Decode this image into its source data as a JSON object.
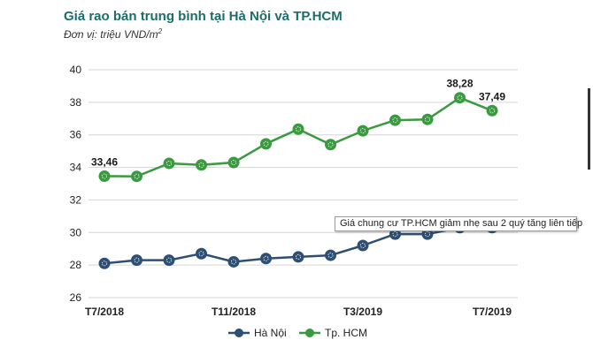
{
  "chart_data": {
    "type": "line",
    "title": "Giá rao bán trung bình tại Hà Nội và TP.HCM",
    "subtitle_prefix": "Đơn vị: triệu VND/m",
    "subtitle_sup": "2",
    "ylim": [
      26,
      40
    ],
    "yticks": [
      26,
      28,
      30,
      32,
      34,
      36,
      38,
      40
    ],
    "x_tick_labels": [
      {
        "index": 0,
        "label": "T7/2018"
      },
      {
        "index": 4,
        "label": "T11/2018"
      },
      {
        "index": 8,
        "label": "T3/2019"
      },
      {
        "index": 12,
        "label": "T7/2019"
      }
    ],
    "grid": "horizontal",
    "legend_position": "bottom",
    "series": [
      {
        "name": "Hà Nội",
        "color": "#2d4f73",
        "values": [
          28.1,
          28.3,
          28.3,
          28.7,
          28.2,
          28.4,
          28.5,
          28.6,
          29.2,
          29.9,
          29.9,
          30.3,
          30.3
        ]
      },
      {
        "name": "Tp. HCM",
        "color": "#3a9a3f",
        "values": [
          33.46,
          33.45,
          34.25,
          34.15,
          34.3,
          35.45,
          36.35,
          35.4,
          36.25,
          36.9,
          36.95,
          38.28,
          37.49
        ]
      }
    ],
    "data_labels": [
      {
        "series": 1,
        "index": 0,
        "text": "33,46"
      },
      {
        "series": 1,
        "index": 11,
        "text": "38,28"
      },
      {
        "series": 1,
        "index": 12,
        "text": "37,49"
      }
    ]
  },
  "tooltip_text": "Giá chung cư TP.HCM giảm nhẹ sau 2 quý tăng liên tiếp"
}
